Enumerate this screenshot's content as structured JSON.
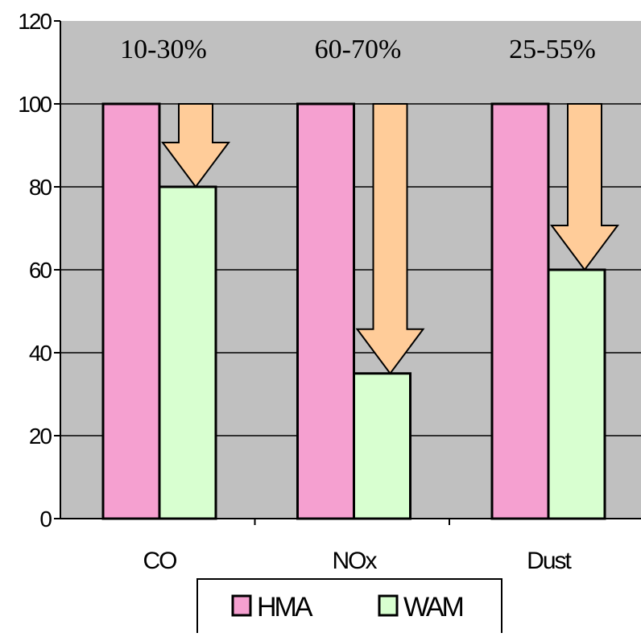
{
  "chart_data": {
    "type": "bar",
    "title": "",
    "xlabel": "",
    "ylabel": "",
    "categories": [
      "CO",
      "NOx",
      "Dust"
    ],
    "series": [
      {
        "name": "HMA",
        "values": [
          100,
          100,
          100
        ]
      },
      {
        "name": "WAM",
        "values": [
          80,
          35,
          60
        ]
      }
    ],
    "ylim": [
      0,
      120
    ],
    "yticks": [
      0,
      20,
      40,
      60,
      80,
      100,
      120
    ],
    "annotations": [
      "10-30%",
      "60-70%",
      "25-55%"
    ],
    "grid": true,
    "legend_position": "bottom",
    "colors": {
      "plot_background": "#c0c0c0",
      "HMA": "#f5a0d0",
      "WAM": "#d8ffd0",
      "arrow": "#ffcc99",
      "gridline": "#000000"
    }
  }
}
